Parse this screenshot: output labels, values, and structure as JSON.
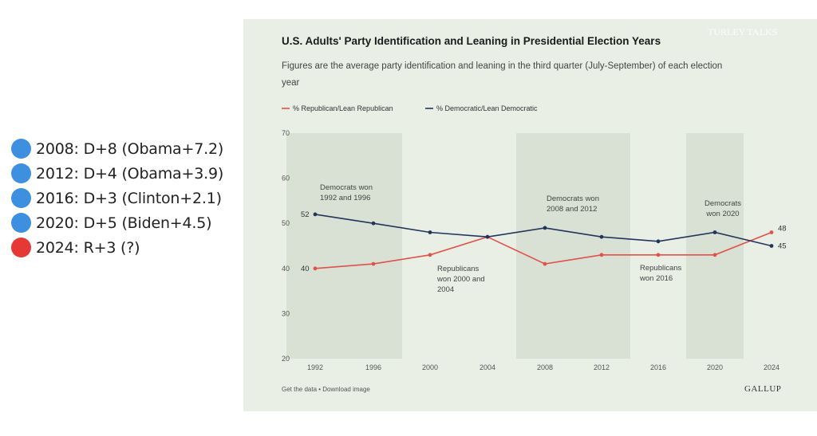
{
  "left_list": [
    {
      "text": "2008: D+8 (Obama+7.2)",
      "color": "#3d8fe0"
    },
    {
      "text": "2012: D+4 (Obama+3.9)",
      "color": "#3d8fe0"
    },
    {
      "text": "2016: D+3 (Clinton+2.1)",
      "color": "#3d8fe0"
    },
    {
      "text": "2020: D+5 (Biden+4.5)",
      "color": "#3d8fe0"
    },
    {
      "text": "2024: R+3 (?)",
      "color": "#e53935"
    }
  ],
  "watermark": "TURLEY TALKS",
  "footer": {
    "left": "Get the data • Download image",
    "brand": "GALLUP"
  },
  "chart_data": {
    "type": "line",
    "title": "U.S. Adults' Party Identification and Leaning in Presidential Election Years",
    "subtitle_lines": [
      "Figures are the average party identification and leaning in the third quarter (July-September) of each election",
      "year"
    ],
    "x": [
      "1992",
      "1996",
      "2000",
      "2004",
      "2008",
      "2012",
      "2016",
      "2020",
      "2024"
    ],
    "ylim": [
      20,
      70
    ],
    "yticks": [
      "70",
      "60",
      "50",
      "40",
      "30",
      "20"
    ],
    "series": [
      {
        "name": "% Republican/Lean Republican",
        "color": "#e0524a",
        "values": [
          40,
          41,
          43,
          47,
          41,
          43,
          43,
          43,
          48
        ]
      },
      {
        "name": "% Democratic/Lean Democratic",
        "color": "#23355e",
        "values": [
          52,
          50,
          48,
          47,
          49,
          47,
          46,
          48,
          45
        ]
      }
    ],
    "start_labels": [
      "52",
      "40"
    ],
    "end_labels": [
      "48",
      "45"
    ],
    "shaded_periods": [
      {
        "from": "1992",
        "to": "1996",
        "label": "Democrats won 1992 and 1996"
      },
      {
        "from": "2008",
        "to": "2012",
        "label": "Democrats won 2008 and 2012"
      },
      {
        "from": "2020",
        "to": "2020",
        "label": "Democrats won 2020"
      }
    ],
    "annotations": [
      {
        "lines": [
          "Democrats won",
          "1992 and 1996"
        ]
      },
      {
        "lines": [
          "Republicans",
          "won 2000 and",
          "2004"
        ]
      },
      {
        "lines": [
          "Democrats won",
          "2008 and 2012"
        ]
      },
      {
        "lines": [
          "Republicans",
          "won 2016"
        ]
      },
      {
        "lines": [
          "Democrats",
          "won 2020"
        ]
      }
    ],
    "shade_color": "#d8e1d3"
  }
}
